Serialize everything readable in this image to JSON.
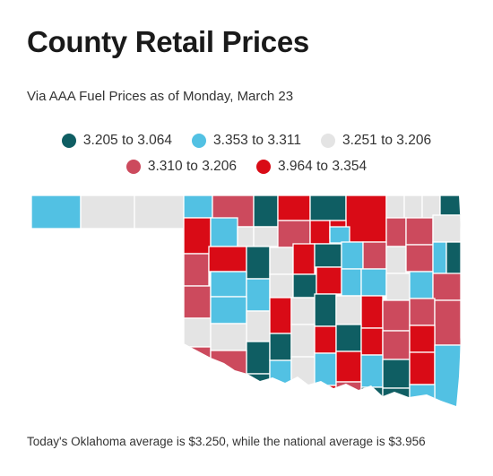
{
  "title": "County Retail Prices",
  "subtitle": "Via AAA Fuel Prices as of Monday, March 23",
  "legend": [
    {
      "label": "3.205 to 3.064",
      "color": "#0f5e63"
    },
    {
      "label": "3.353 to 3.311",
      "color": "#52c1e3"
    },
    {
      "label": "3.251 to 3.206",
      "color": "#e4e4e4"
    },
    {
      "label": "3.310 to 3.206",
      "color": "#cc4a5d"
    },
    {
      "label": "3.964 to 3.354",
      "color": "#d90b16"
    }
  ],
  "footer": "Today's Oklahoma average is $3.250, while the national average is $3.956",
  "colors": {
    "dteal": "#0f5e63",
    "lblue": "#52c1e3",
    "lgray": "#e4e4e4",
    "pink": "#cc4a5d",
    "red": "#d90b16"
  }
}
